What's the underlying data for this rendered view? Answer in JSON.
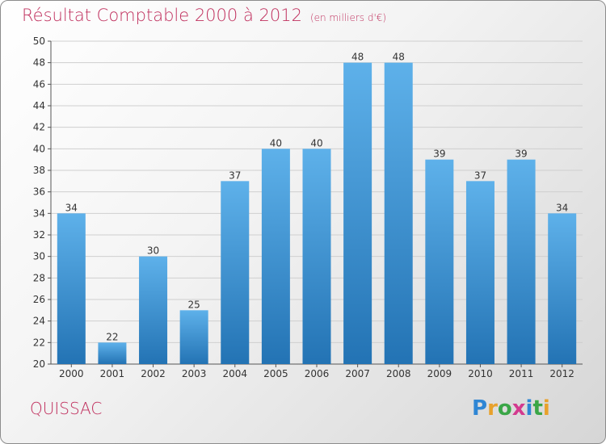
{
  "header": {
    "title": "Résultat Comptable 2000 à 2012",
    "unit": "(en milliers d'€)"
  },
  "footer": {
    "city": "QUISSAC",
    "brand": "Proxiti"
  },
  "colors": {
    "bar_top": "#5eb1ea",
    "bar_bottom": "#2373b4",
    "accent": "#c0305e",
    "grid": "#cfcfcf"
  },
  "chart_data": {
    "type": "bar",
    "title": "Résultat Comptable 2000 à 2012",
    "ylabel": "en milliers d'€",
    "xlabel": "",
    "categories": [
      "2000",
      "2001",
      "2002",
      "2003",
      "2004",
      "2005",
      "2006",
      "2007",
      "2008",
      "2009",
      "2010",
      "2011",
      "2012"
    ],
    "values": [
      34,
      22,
      30,
      25,
      37,
      40,
      40,
      48,
      48,
      39,
      37,
      39,
      34
    ],
    "ylim": [
      20,
      50
    ],
    "yticks": [
      20,
      22,
      24,
      26,
      28,
      30,
      32,
      34,
      36,
      38,
      40,
      42,
      44,
      46,
      48,
      50
    ],
    "grid": true,
    "legend": "none"
  }
}
